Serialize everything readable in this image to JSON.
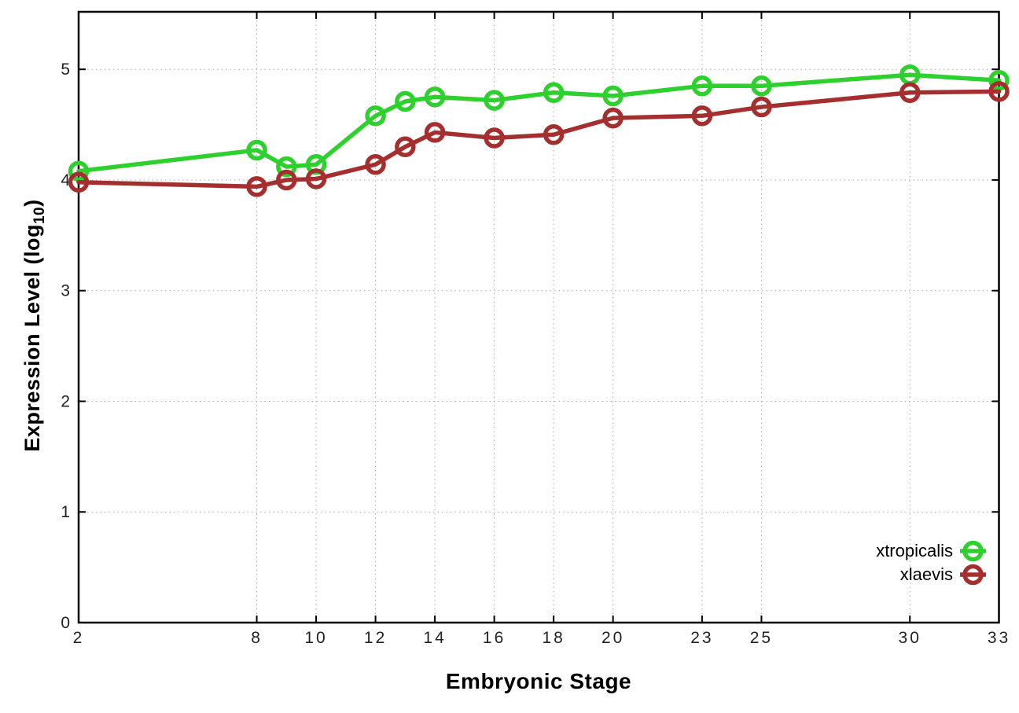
{
  "labels": {
    "xlabel": "Embryonic Stage",
    "ylabel_prefix": "Expression Level (log",
    "ylabel_sub": "10",
    "ylabel_suffix": ")"
  },
  "chart_data": {
    "type": "line",
    "title": "",
    "xlabel": "Embryonic Stage",
    "ylabel": "Expression Level (log10)",
    "x": [
      2,
      8,
      9,
      10,
      12,
      13,
      14,
      16,
      18,
      20,
      23,
      25,
      30,
      33
    ],
    "series": [
      {
        "name": "xtropicalis",
        "color": "#2ed02e",
        "values": [
          4.08,
          4.27,
          4.12,
          4.14,
          4.58,
          4.71,
          4.75,
          4.72,
          4.79,
          4.76,
          4.85,
          4.85,
          4.95,
          4.9
        ]
      },
      {
        "name": "xlaevis",
        "color": "#a52f2f",
        "values": [
          3.98,
          3.94,
          4.0,
          4.01,
          4.14,
          4.3,
          4.43,
          4.38,
          4.41,
          4.56,
          4.58,
          4.66,
          4.79,
          4.8
        ]
      }
    ],
    "x_ticks": [
      2,
      8,
      10,
      12,
      14,
      16,
      18,
      20,
      23,
      25,
      30,
      33
    ],
    "y_ticks": [
      0,
      1,
      2,
      3,
      4,
      5
    ],
    "xlim": [
      2,
      33
    ],
    "ylim": [
      0,
      5.52
    ],
    "grid": true,
    "legend_position": "inside-bottom-right",
    "marker": "open-circle",
    "colors": {
      "axis": "#000000",
      "grid": "#aaaaaa",
      "tick_labels": "#222222",
      "legend_text": "#000000"
    }
  }
}
